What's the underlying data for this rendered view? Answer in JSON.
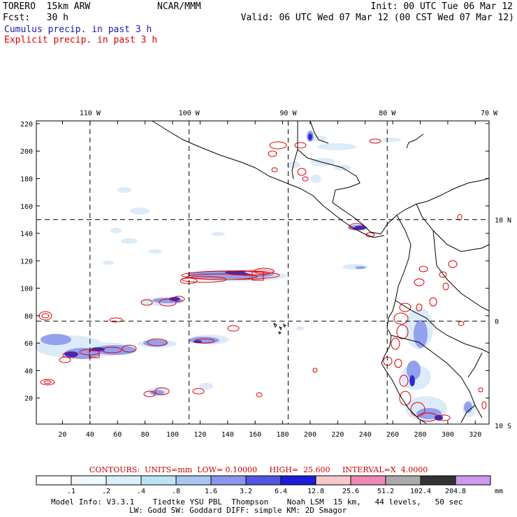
{
  "header": {
    "model": "TORERO  15km ARW",
    "org": "NCAR/MMM",
    "init": "Init: 00 UTC Tue 06 Mar 12",
    "fcst": "Fcst:   30 h",
    "valid": "Valid: 06 UTC Wed 07 Mar 12 (00 CST Wed 07 Mar 12)"
  },
  "legend_lines": [
    {
      "text": "Cumulus precip. in past 3 h",
      "color": "#1a1aa6"
    },
    {
      "text": "Explicit precip. in past 3 h",
      "color": "#dd0000"
    }
  ],
  "map": {
    "lon_labels": [
      "110 W",
      "100 W",
      "90 W",
      "80 W",
      "70 W"
    ],
    "lat_labels": [
      "10 N",
      "0",
      "10 S"
    ],
    "y_ticks": [
      "20",
      "40",
      "60",
      "80",
      "100",
      "120",
      "140",
      "160",
      "180",
      "200",
      "220"
    ],
    "x_ticks": [
      "20",
      "40",
      "60",
      "80",
      "100",
      "120",
      "140",
      "160",
      "180",
      "200",
      "220",
      "240",
      "260",
      "280",
      "300",
      "320"
    ],
    "grid_i": [
      40,
      112,
      184,
      256
    ],
    "grid_j": [
      76,
      150
    ],
    "xlim": [
      1,
      330
    ],
    "ylim": [
      1,
      222
    ]
  },
  "colorbar": {
    "unit": "mm",
    "colors": [
      "#ffffff",
      "#f0f8ff",
      "#d9f0fb",
      "#bde3f5",
      "#a9c5f0",
      "#8a96ea",
      "#5555e0",
      "#1c1cd8",
      "#f7c8c8",
      "#ee88b4",
      "#aaaaaa",
      "#333333",
      "#cc99ee"
    ],
    "labels": [
      ".1",
      ".2",
      ".4",
      ".8",
      "1.6",
      "3.2",
      "6.4",
      "12.8",
      "25.6",
      "51.2",
      "102.4",
      "204.8"
    ]
  },
  "contours_text": "CONTOURS:  UNITS=mm  LOW= 0.10000     HIGH=  25.600     INTERVAL=X  4.0000",
  "footer": {
    "line1": "Model Info: V3.3.1    Tiedtke YSU PBL  Thompson    Noah LSM  15 km,   44 levels,   50 sec",
    "line2": "LW: Godd SW: Goddard DIFF: simple KM: 2D Smagor"
  },
  "colors": {
    "frame": "#000000",
    "explicit": "#dd0000",
    "cumulus_light": "#d9eaf8",
    "cumulus_mid": "#8a96ea",
    "cumulus_dark": "#2a2ad0",
    "heavy": "#f4c0cc"
  }
}
